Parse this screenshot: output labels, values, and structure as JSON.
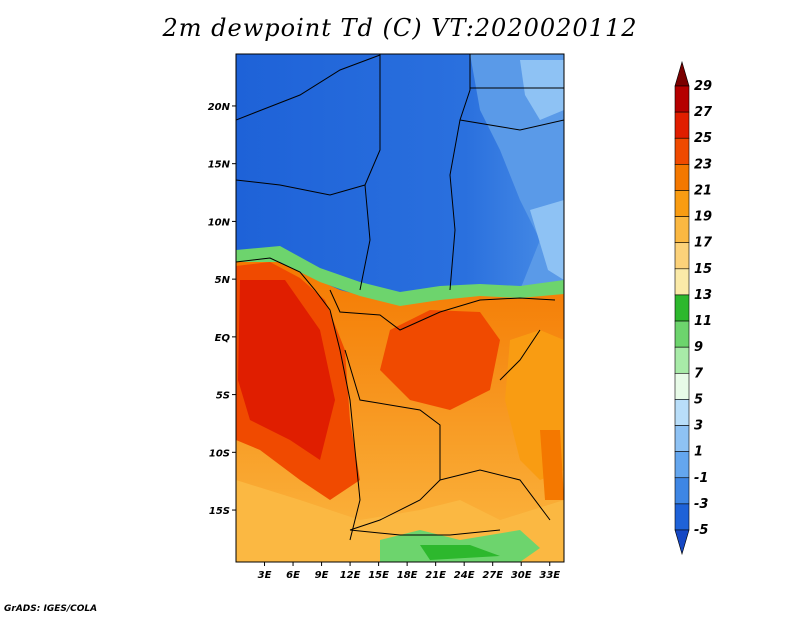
{
  "title": "2m dewpoint Td (C) VT:2020020112",
  "credit": "GrADS: IGES/COLA",
  "map": {
    "lon_range": [
      0,
      34.5
    ],
    "lat_range": [
      -19.5,
      24.5
    ],
    "lon_ticks": [
      "3E",
      "6E",
      "9E",
      "12E",
      "15E",
      "18E",
      "21E",
      "24E",
      "27E",
      "30E",
      "33E"
    ],
    "lon_tick_values": [
      3,
      6,
      9,
      12,
      15,
      18,
      21,
      24,
      27,
      30,
      33
    ],
    "lat_ticks": [
      "20N",
      "15N",
      "10N",
      "5N",
      "EQ",
      "5S",
      "10S",
      "15S"
    ],
    "lat_tick_values": [
      20,
      15,
      10,
      5,
      0,
      -5,
      -10,
      -15
    ]
  },
  "colorbar": {
    "labels": [
      "29",
      "27",
      "25",
      "23",
      "21",
      "19",
      "17",
      "15",
      "13",
      "11",
      "9",
      "7",
      "5",
      "3",
      "1",
      "-1",
      "-3",
      "-5"
    ],
    "colors": [
      "#7a0000",
      "#b50000",
      "#e01e00",
      "#f04a00",
      "#f47800",
      "#f99c12",
      "#fbb842",
      "#fcd27a",
      "#fbeaa8",
      "#2db82d",
      "#6dd46d",
      "#a8eba8",
      "#e8fbe8",
      "#b9def9",
      "#8ec2f4",
      "#64a6ee",
      "#3e86e4",
      "#1e62d8",
      "#1648c4"
    ]
  }
}
